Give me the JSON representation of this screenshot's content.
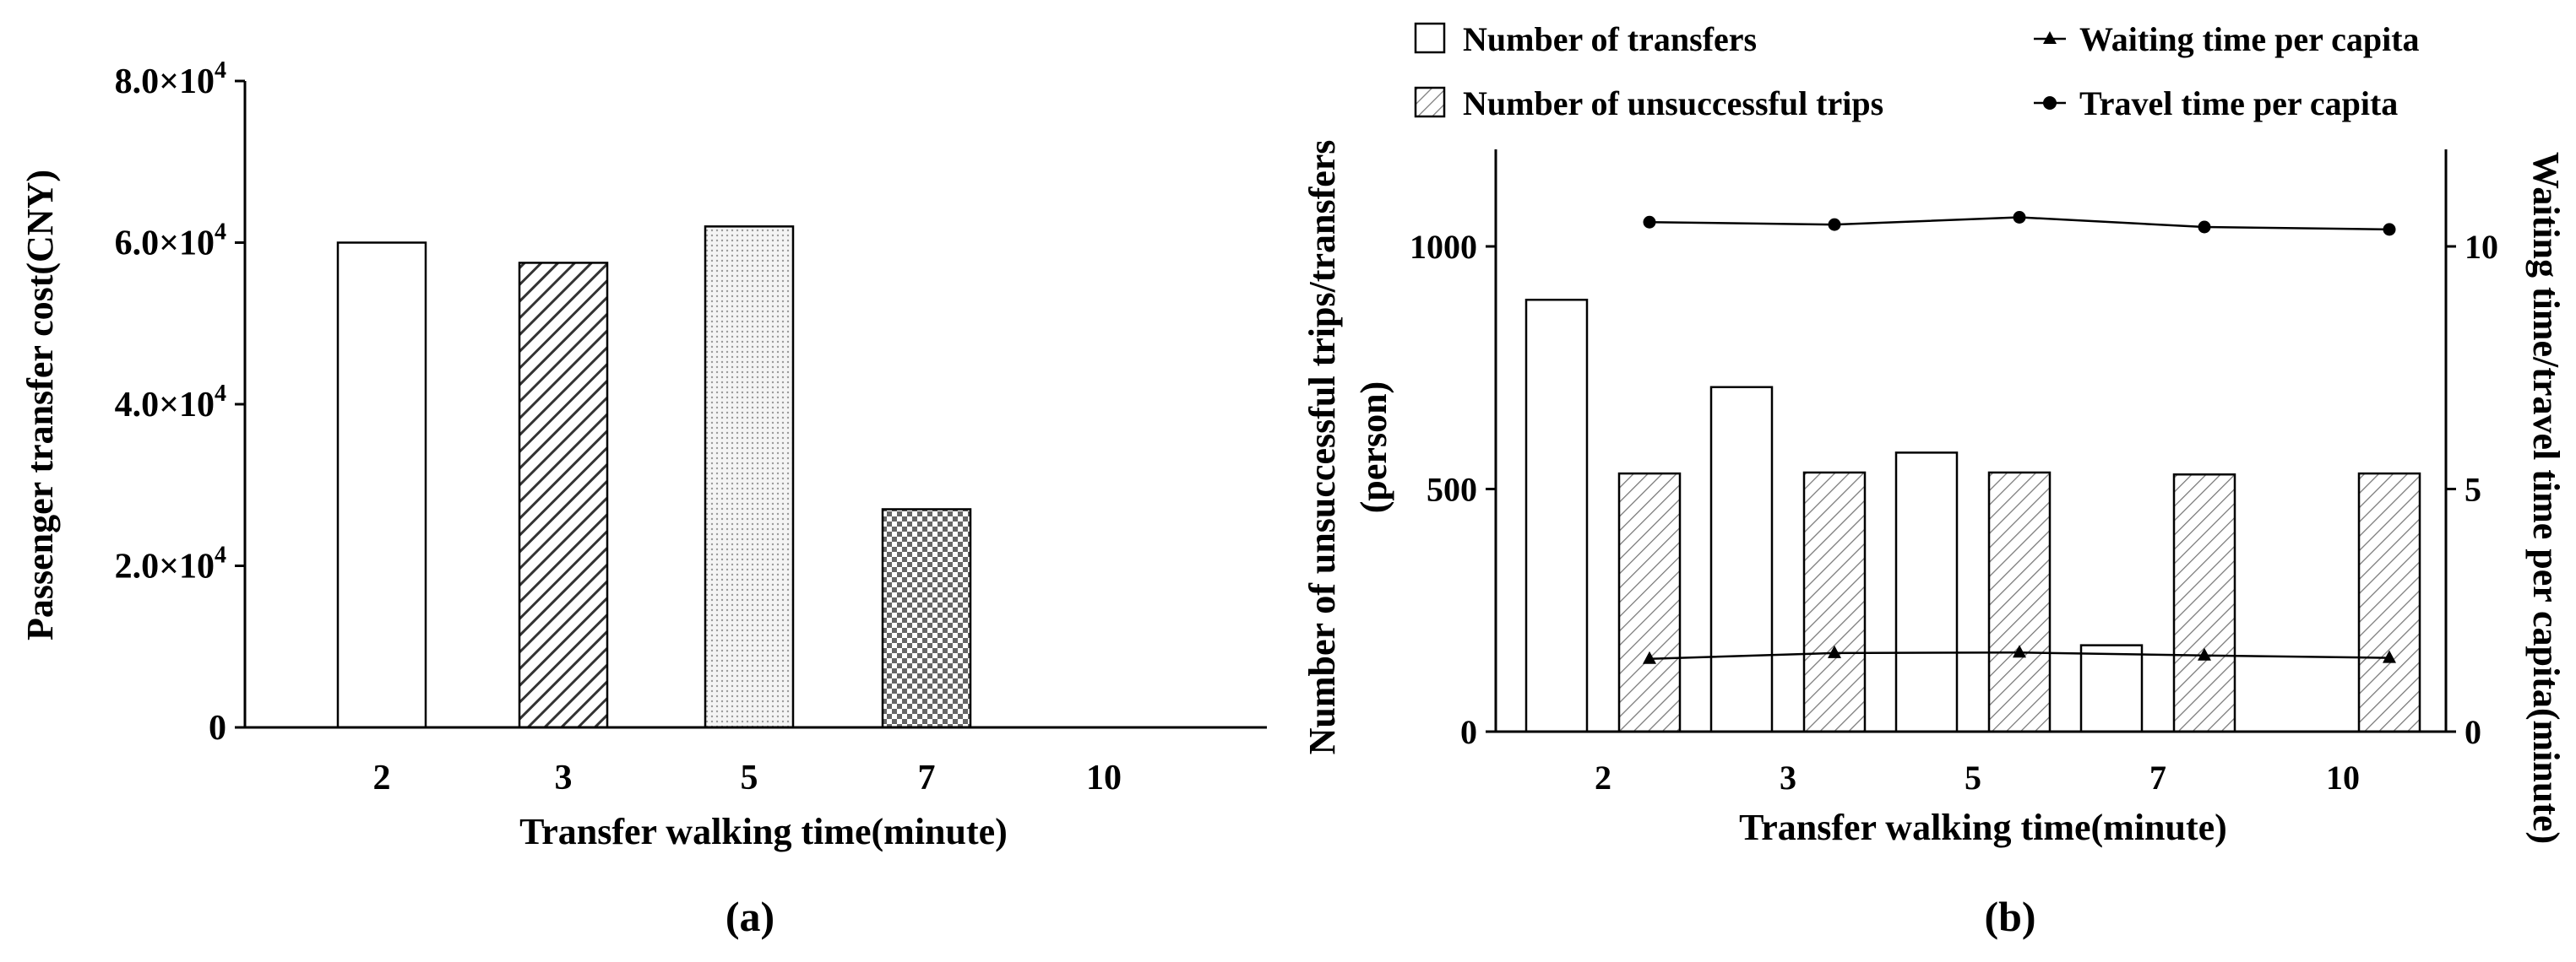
{
  "chart_data": [
    {
      "id": "a",
      "type": "bar",
      "panel_label": "(a)",
      "xlabel": "Transfer walking time(minute)",
      "ylabel": "Passenger transfer cost(CNY)",
      "categories": [
        "2",
        "3",
        "5",
        "7",
        "10"
      ],
      "values": [
        60000,
        57500,
        62000,
        27000,
        0
      ],
      "ylim": [
        0,
        80000
      ],
      "yticks": [
        {
          "value": 0,
          "label": "0",
          "base": "",
          "exp": ""
        },
        {
          "value": 20000,
          "label": "",
          "base": "2.0×10",
          "exp": "4"
        },
        {
          "value": 40000,
          "label": "",
          "base": "4.0×10",
          "exp": "4"
        },
        {
          "value": 60000,
          "label": "",
          "base": "6.0×10",
          "exp": "4"
        },
        {
          "value": 80000,
          "label": "",
          "base": "8.0×10",
          "exp": "4"
        }
      ],
      "bar_patterns": [
        "blank",
        "diagonal-hatch",
        "dots",
        "checker",
        "blank"
      ],
      "grid": false
    },
    {
      "id": "b",
      "type": "bar",
      "panel_label": "(b)",
      "xlabel": "Transfer walking time(minute)",
      "ylabel_left_line1": "Number of unsuccessful trips/transfers",
      "ylabel_left_line2": "(person)",
      "ylabel_right": "Waiting time/travel time per capita(minute)",
      "categories": [
        "2",
        "3",
        "5",
        "7",
        "10"
      ],
      "ylim_left": [
        0,
        1200
      ],
      "ylim_right": [
        0,
        12
      ],
      "yticks_left": [
        0,
        500,
        1000
      ],
      "yticks_right": [
        0,
        5,
        10
      ],
      "series": [
        {
          "name": "Number of transfers",
          "kind": "bar",
          "axis": "left",
          "pattern": "blank",
          "values": [
            890,
            710,
            575,
            178,
            0
          ]
        },
        {
          "name": "Number of unsuccessful trips",
          "kind": "bar",
          "axis": "left",
          "pattern": "diagonal-hatch",
          "values": [
            532,
            534,
            534,
            530,
            532
          ]
        },
        {
          "name": "Waiting time per capita",
          "kind": "line",
          "axis": "right",
          "marker": "triangle",
          "values": [
            1.5,
            1.62,
            1.63,
            1.57,
            1.52
          ]
        },
        {
          "name": "Travel time per capita",
          "kind": "line",
          "axis": "right",
          "marker": "circle",
          "values": [
            10.5,
            10.45,
            10.6,
            10.4,
            10.35
          ]
        }
      ],
      "legend_position": "top",
      "grid": false
    }
  ]
}
